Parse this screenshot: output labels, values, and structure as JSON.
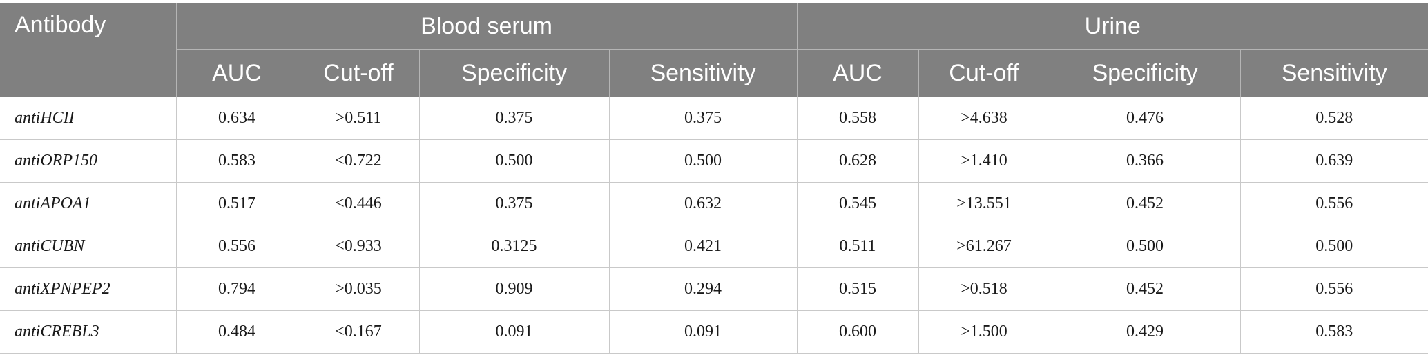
{
  "table": {
    "header": {
      "antibody_label": "Antibody",
      "groups": [
        "Blood serum",
        "Urine"
      ],
      "columns": [
        "AUC",
        "Cut-off",
        "Specificity",
        "Sensitivity",
        "AUC",
        "Cut-off",
        "Specificity",
        "Sensitivity"
      ]
    },
    "rows": [
      {
        "name": "antiHCII",
        "cells": [
          "0.634",
          ">0.511",
          "0.375",
          "0.375",
          "0.558",
          ">4.638",
          "0.476",
          "0.528"
        ]
      },
      {
        "name": "antiORP150",
        "cells": [
          "0.583",
          "<0.722",
          "0.500",
          "0.500",
          "0.628",
          ">1.410",
          "0.366",
          "0.639"
        ]
      },
      {
        "name": "antiAPOA1",
        "cells": [
          "0.517",
          "<0.446",
          "0.375",
          "0.632",
          "0.545",
          ">13.551",
          "0.452",
          "0.556"
        ]
      },
      {
        "name": "antiCUBN",
        "cells": [
          "0.556",
          "<0.933",
          "0.3125",
          "0.421",
          "0.511",
          ">61.267",
          "0.500",
          "0.500"
        ]
      },
      {
        "name": "antiXPNPEP2",
        "cells": [
          "0.794",
          ">0.035",
          "0.909",
          "0.294",
          "0.515",
          ">0.518",
          "0.452",
          "0.556"
        ]
      },
      {
        "name": "antiCREBL3",
        "cells": [
          "0.484",
          "<0.167",
          "0.091",
          "0.091",
          "0.600",
          ">1.500",
          "0.429",
          "0.583"
        ]
      }
    ]
  }
}
